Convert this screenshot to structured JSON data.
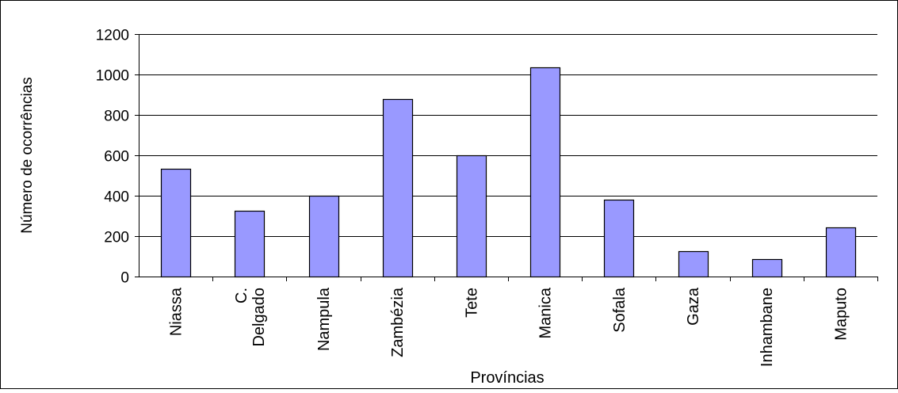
{
  "chart_data": {
    "type": "bar",
    "title": "",
    "xlabel": "Províncias",
    "ylabel": "Número de ocorrências",
    "categories": [
      "Niassa",
      "C. Delgado",
      "Nampula",
      "Zambézia",
      "Tete",
      "Manica",
      "Sofala",
      "Gaza",
      "Inhambane",
      "Maputo"
    ],
    "category_lines": [
      [
        "Niassa"
      ],
      [
        "C.",
        "Delgado"
      ],
      [
        "Nampula"
      ],
      [
        "Zambézia"
      ],
      [
        "Tete"
      ],
      [
        "Manica"
      ],
      [
        "Sofala"
      ],
      [
        "Gaza"
      ],
      [
        "Inhambane"
      ],
      [
        "Maputo"
      ]
    ],
    "values": [
      535,
      325,
      400,
      880,
      600,
      1035,
      380,
      125,
      85,
      245
    ],
    "ylim": [
      0,
      1200
    ],
    "yticks": [
      0,
      200,
      400,
      600,
      800,
      1000,
      1200
    ],
    "grid": true,
    "legend": "none",
    "colors": {
      "bar_fill": "#9999ff",
      "bar_stroke": "#000000",
      "grid": "#000000",
      "frame": "#000000"
    }
  }
}
